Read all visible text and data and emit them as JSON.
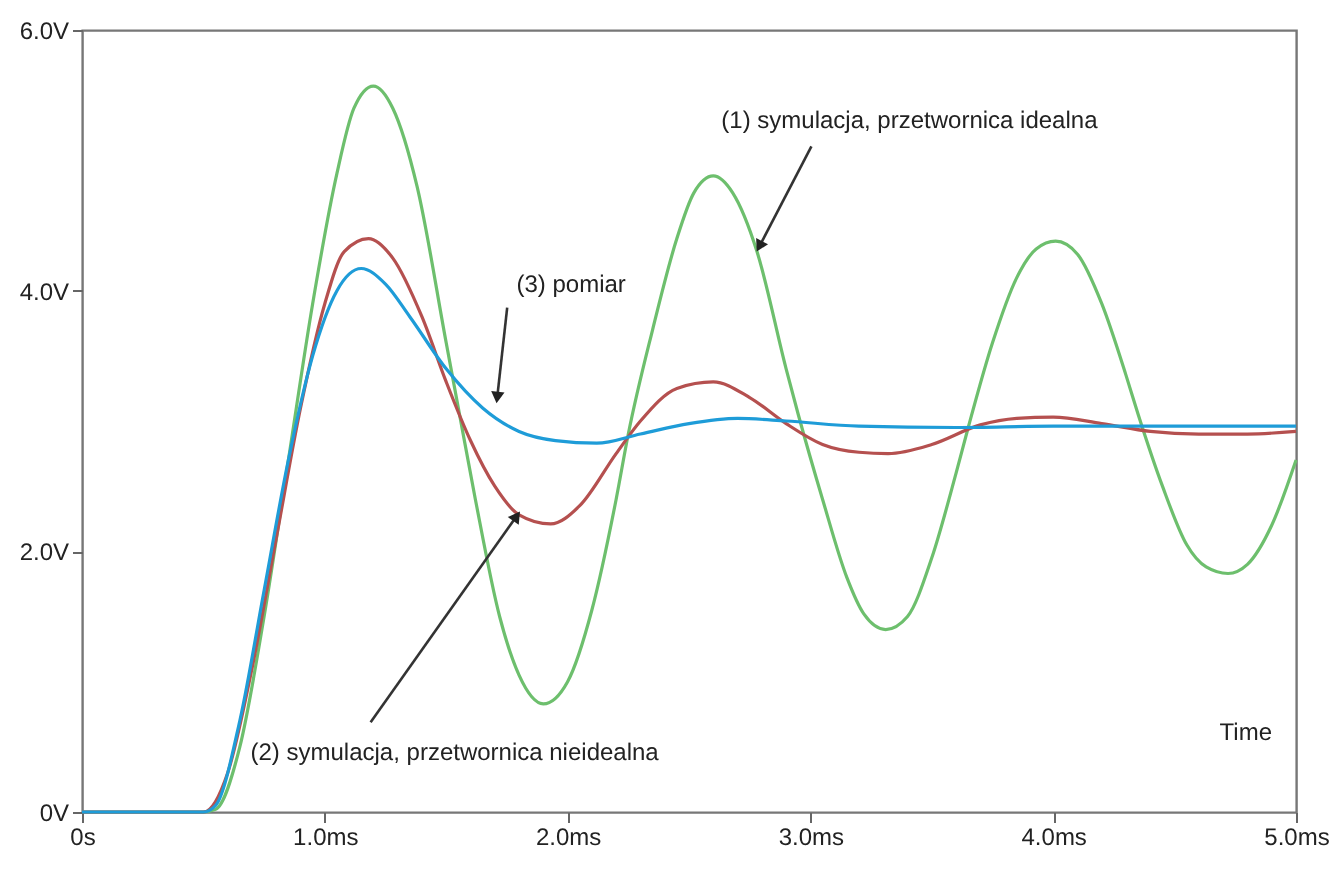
{
  "chart_data": {
    "type": "line",
    "xlabel": "Time",
    "xlim": [
      0,
      5
    ],
    "ylim": [
      0,
      6
    ],
    "xticks": [
      {
        "value": 0,
        "label": "0s"
      },
      {
        "value": 1,
        "label": "1.0ms"
      },
      {
        "value": 2,
        "label": "2.0ms"
      },
      {
        "value": 3,
        "label": "3.0ms"
      },
      {
        "value": 4,
        "label": "4.0ms"
      },
      {
        "value": 5,
        "label": "5.0ms"
      }
    ],
    "yticks": [
      {
        "value": 0,
        "label": "0V"
      },
      {
        "value": 2,
        "label": "2.0V"
      },
      {
        "value": 4,
        "label": "4.0V"
      },
      {
        "value": 6,
        "label": "6.0V"
      }
    ],
    "grid": false,
    "line_style": "solid",
    "marker": "none",
    "series": [
      {
        "color": "#6dbf6d",
        "x": [
          0,
          0.5,
          0.55,
          0.65,
          0.75,
          0.85,
          0.95,
          1.05,
          1.12,
          1.2,
          1.28,
          1.38,
          1.5,
          1.55,
          1.62,
          1.72,
          1.8,
          1.9,
          2.0,
          2.1,
          2.2,
          2.25,
          2.35,
          2.45,
          2.52,
          2.6,
          2.68,
          2.78,
          2.9,
          2.95,
          3.05,
          3.15,
          3.22,
          3.31,
          3.4,
          3.5,
          3.6,
          3.65,
          3.75,
          3.85,
          3.93,
          4.01,
          4.1,
          4.2,
          4.3,
          4.35,
          4.45,
          4.55,
          4.63,
          4.72,
          4.8,
          4.9,
          5.0
        ],
        "values": [
          0,
          0,
          0.02,
          0.5,
          1.5,
          2.7,
          3.9,
          4.9,
          5.4,
          5.57,
          5.4,
          4.8,
          3.6,
          3.1,
          2.4,
          1.5,
          1.05,
          0.83,
          1.0,
          1.55,
          2.4,
          2.9,
          3.7,
          4.4,
          4.75,
          4.88,
          4.75,
          4.3,
          3.4,
          3.05,
          2.4,
          1.8,
          1.52,
          1.4,
          1.5,
          1.95,
          2.6,
          2.95,
          3.6,
          4.1,
          4.32,
          4.38,
          4.28,
          3.9,
          3.35,
          3.05,
          2.5,
          2.05,
          1.88,
          1.83,
          1.9,
          2.2,
          2.7
        ]
      },
      {
        "color": "#b5504f",
        "x": [
          0,
          0.5,
          0.6,
          0.7,
          0.8,
          0.9,
          1.0,
          1.08,
          1.18,
          1.28,
          1.4,
          1.5,
          1.6,
          1.7,
          1.8,
          1.93,
          2.05,
          2.2,
          2.3,
          2.45,
          2.6,
          2.75,
          2.9,
          3.05,
          3.2,
          3.32,
          3.5,
          3.7,
          3.85,
          4.0,
          4.2,
          4.4,
          4.6,
          4.8,
          5.0
        ],
        "values": [
          0,
          0,
          0.3,
          1.1,
          2.1,
          3.1,
          3.9,
          4.3,
          4.4,
          4.25,
          3.8,
          3.3,
          2.85,
          2.5,
          2.28,
          2.21,
          2.35,
          2.75,
          3.0,
          3.25,
          3.3,
          3.18,
          2.98,
          2.82,
          2.76,
          2.75,
          2.82,
          2.97,
          3.02,
          3.03,
          2.98,
          2.92,
          2.9,
          2.9,
          2.92
        ]
      },
      {
        "color": "#1e9cd8",
        "x": [
          0,
          0.5,
          0.55,
          0.65,
          0.75,
          0.85,
          0.95,
          1.05,
          1.15,
          1.25,
          1.35,
          1.5,
          1.65,
          1.8,
          1.95,
          2.12,
          2.3,
          2.5,
          2.7,
          2.9,
          3.2,
          3.6,
          4.0,
          4.5,
          5.0
        ],
        "values": [
          0,
          0,
          0.05,
          0.7,
          1.7,
          2.7,
          3.5,
          4.0,
          4.17,
          4.05,
          3.8,
          3.4,
          3.1,
          2.92,
          2.85,
          2.83,
          2.9,
          2.98,
          3.02,
          3.0,
          2.96,
          2.95,
          2.96,
          2.96,
          2.96
        ]
      }
    ],
    "annotations": [
      {
        "text": "(1) symulacja, przetwornica idealna",
        "x": 2.79,
        "y": 4.34
      },
      {
        "text": "(3) pomiar",
        "x": 1.71,
        "y": 3.18
      },
      {
        "text": "(2) symulacja, przetwornica nieidealna",
        "x": 1.79,
        "y": 2.27
      }
    ]
  }
}
